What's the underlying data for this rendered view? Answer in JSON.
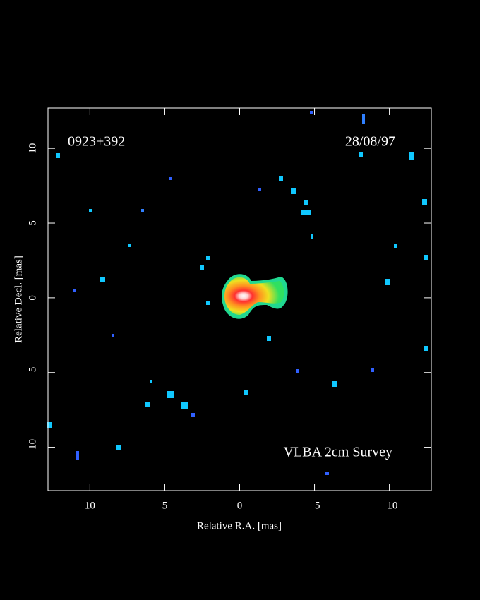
{
  "chart_data": {
    "type": "image",
    "source_label": "0923+392",
    "date_label": "28/08/97",
    "survey_label": "VLBA 2cm Survey",
    "xlabel": "Relative R.A. [mas]",
    "ylabel": "Relative Decl. [mas]",
    "xlim": [
      12.8,
      -12.8
    ],
    "ylim": [
      -12.9,
      12.7
    ],
    "xticks": [
      10,
      5,
      0,
      {
        "value": -5,
        "label": "−5"
      },
      {
        "value": -10,
        "label": "−10"
      }
    ],
    "yticks": [
      {
        "value": -10,
        "label": "−10"
      },
      {
        "value": -5,
        "label": "−5"
      },
      0,
      5,
      10
    ],
    "color": "#ffffff"
  }
}
